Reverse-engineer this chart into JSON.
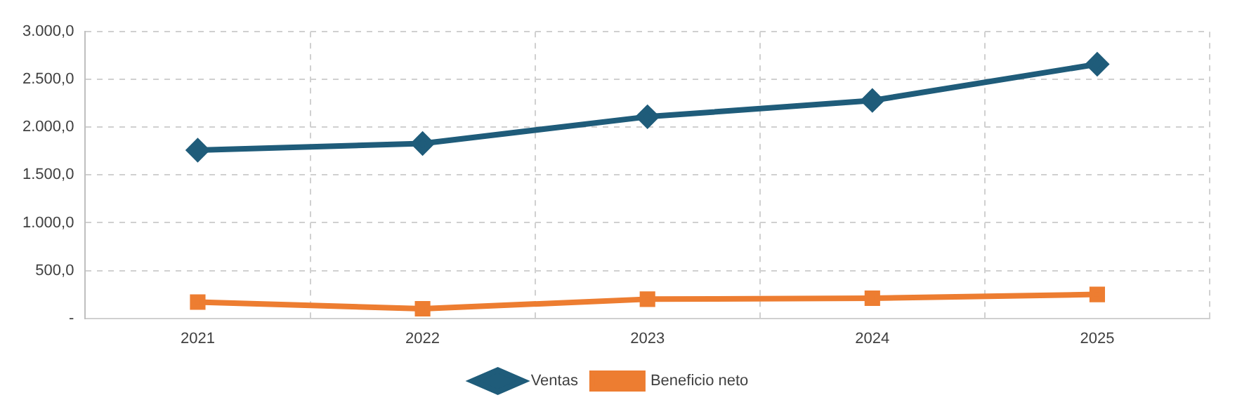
{
  "chart_data": {
    "type": "line",
    "categories": [
      "2021",
      "2022",
      "2023",
      "2024",
      "2025"
    ],
    "series": [
      {
        "name": "Ventas",
        "color": "#1f5c7a",
        "marker": "diamond",
        "values": [
          1760,
          1830,
          2110,
          2280,
          2660
        ]
      },
      {
        "name": "Beneficio neto",
        "color": "#ed7d31",
        "marker": "square",
        "values": [
          170,
          100,
          200,
          210,
          250
        ]
      }
    ],
    "ylim": [
      0,
      3000
    ],
    "yticks": [
      {
        "value": 0,
        "label": "-"
      },
      {
        "value": 500,
        "label": "500,0"
      },
      {
        "value": 1000,
        "label": "1.000,0"
      },
      {
        "value": 1500,
        "label": "1.500,0"
      },
      {
        "value": 2000,
        "label": "2.000,0"
      },
      {
        "value": 2500,
        "label": "2.500,0"
      },
      {
        "value": 3000,
        "label": "3.000,0"
      }
    ],
    "grid": true,
    "legend": "bottom",
    "line_style": "solid"
  }
}
